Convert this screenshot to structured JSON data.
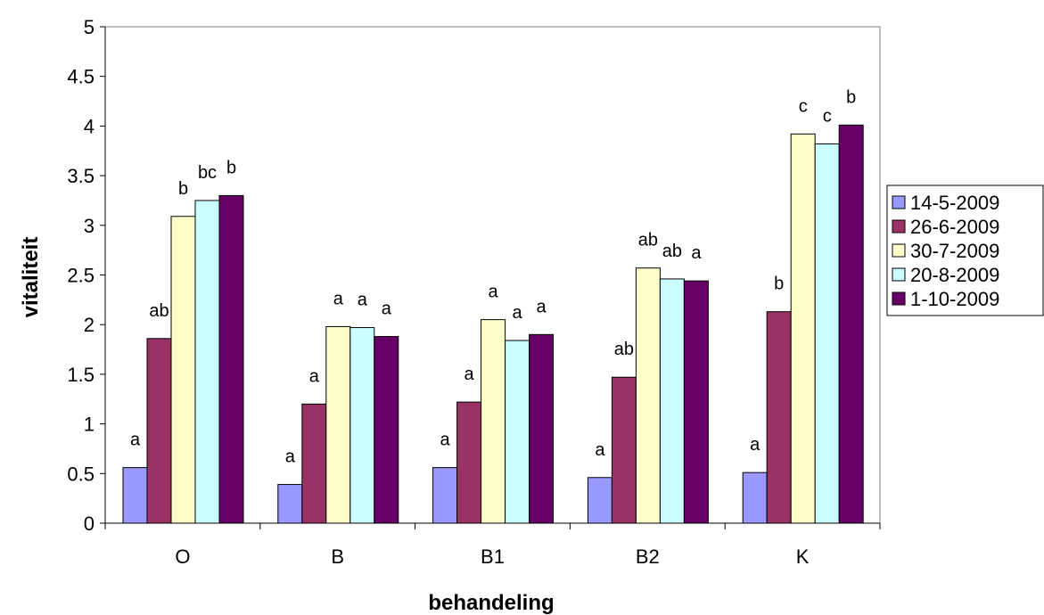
{
  "chart_data": {
    "type": "bar",
    "xlabel": "behandeling",
    "ylabel": "vitaliteit",
    "ylim": [
      0,
      5
    ],
    "yticks": [
      "0",
      "0.5",
      "1",
      "1.5",
      "2",
      "2.5",
      "3",
      "3.5",
      "4",
      "4.5",
      "5"
    ],
    "categories": [
      "O",
      "B",
      "B1",
      "B2",
      "K"
    ],
    "grid": false,
    "legend_position": "right",
    "series": [
      {
        "name": "14-5-2009",
        "color": "#9999ff",
        "values": [
          0.56,
          0.39,
          0.56,
          0.46,
          0.51
        ],
        "labels": [
          "a",
          "a",
          "a",
          "a",
          "a"
        ]
      },
      {
        "name": "26-6-2009",
        "color": "#993366",
        "values": [
          1.86,
          1.2,
          1.22,
          1.47,
          2.13
        ],
        "labels": [
          "ab",
          "a",
          "a",
          "ab",
          "b"
        ]
      },
      {
        "name": "30-7-2009",
        "color": "#ffffcc",
        "values": [
          3.09,
          1.98,
          2.05,
          2.57,
          3.92
        ],
        "labels": [
          "b",
          "a",
          "a",
          "ab",
          "c"
        ]
      },
      {
        "name": "20-8-2009",
        "color": "#ccffff",
        "values": [
          3.25,
          1.97,
          1.84,
          2.46,
          3.82
        ],
        "labels": [
          "bc",
          "a",
          "a",
          "ab",
          "c"
        ]
      },
      {
        "name": "1-10-2009",
        "color": "#660066",
        "values": [
          3.3,
          1.88,
          1.9,
          2.44,
          4.01
        ],
        "labels": [
          "b",
          "a",
          "a",
          "a",
          "b"
        ]
      }
    ]
  }
}
